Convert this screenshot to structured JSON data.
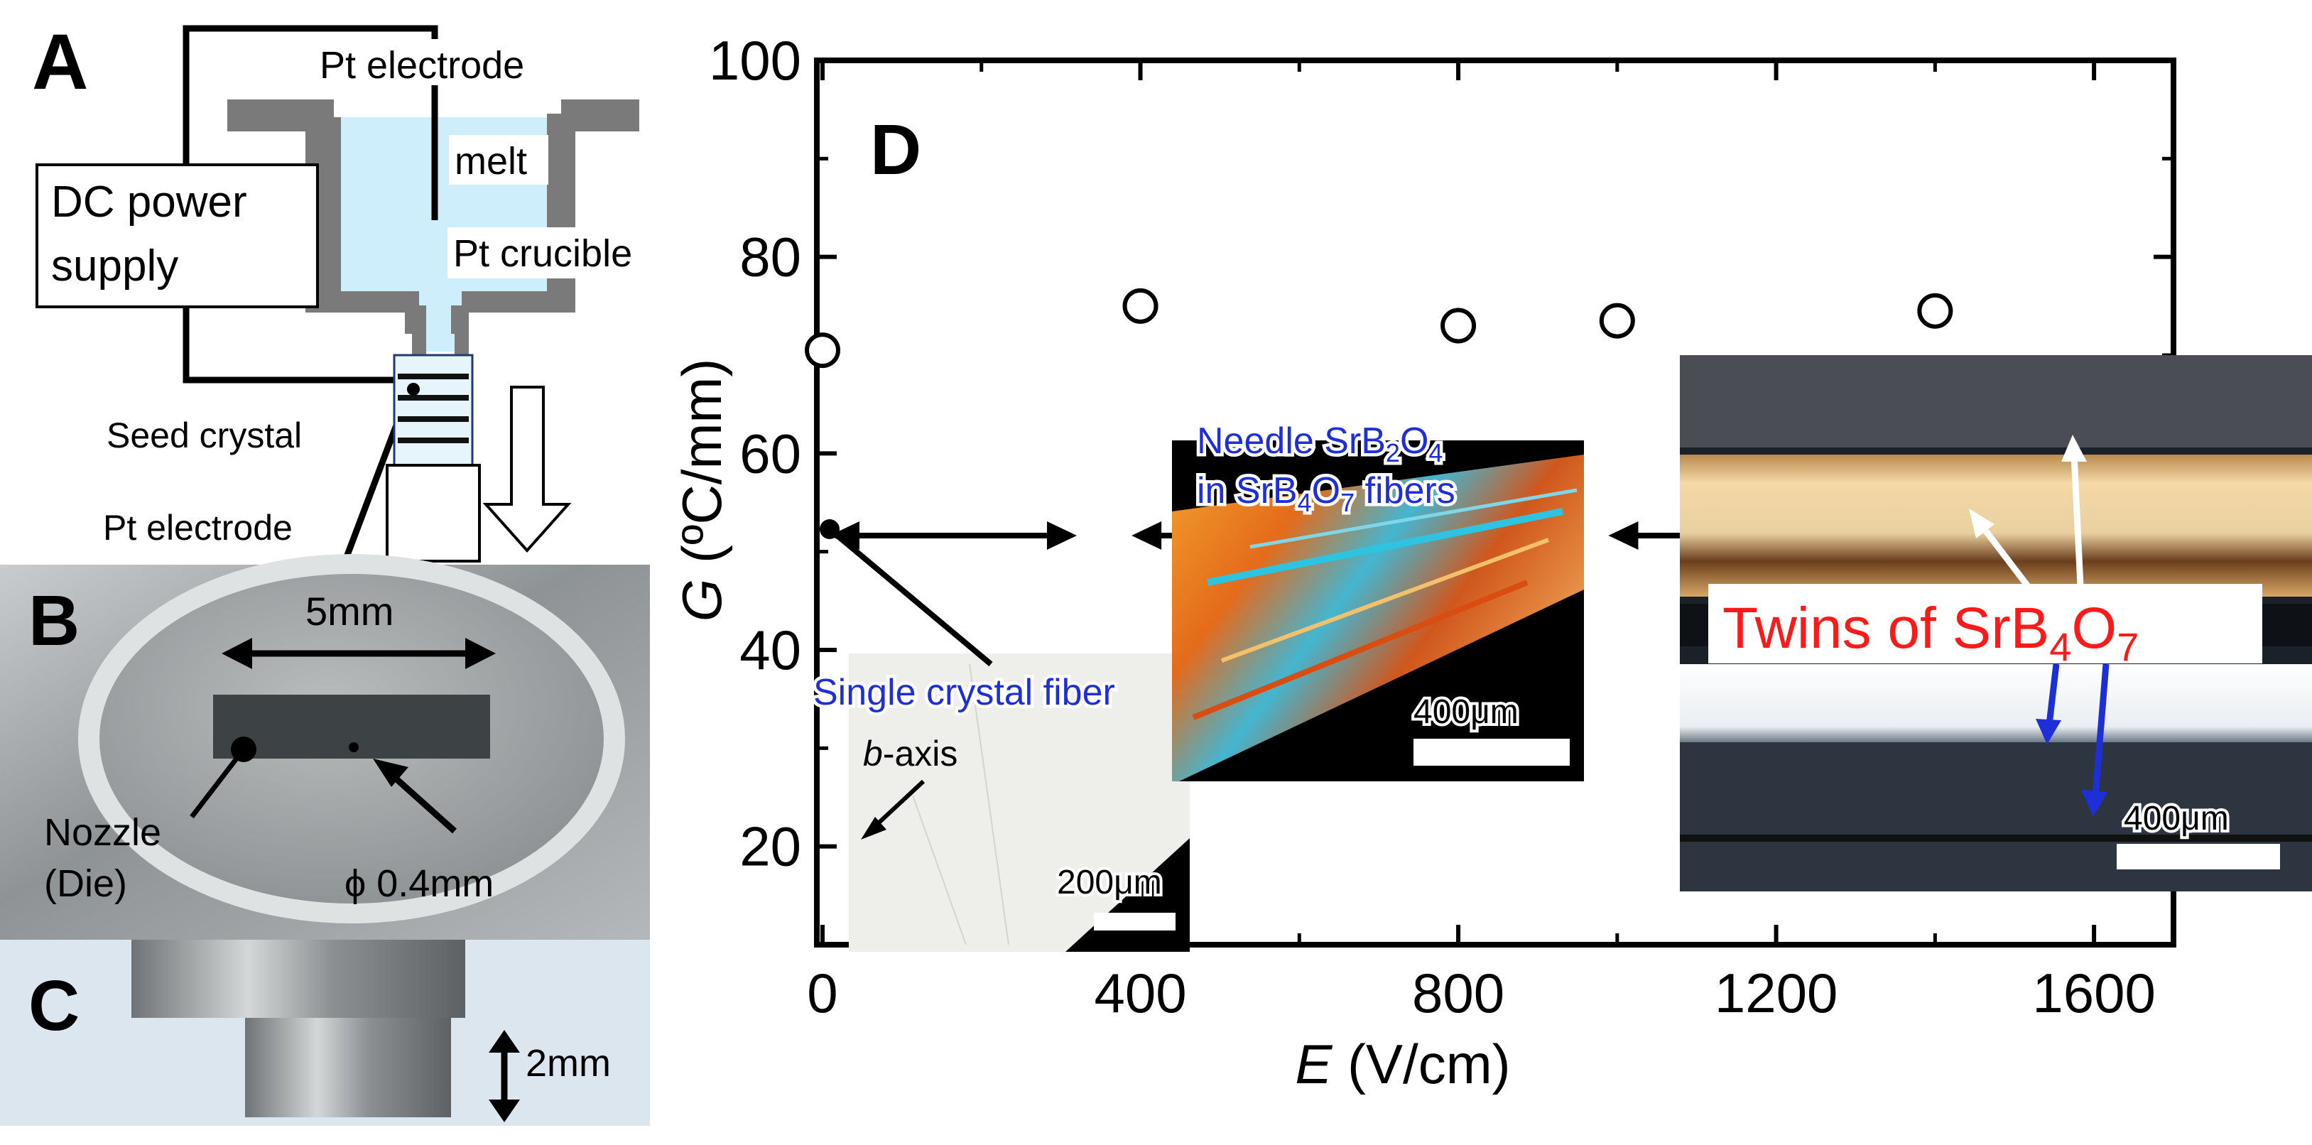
{
  "panel_a": {
    "letter": "A",
    "top_electrode": "Pt electrode",
    "melt": "melt",
    "crucible": "Pt crucible",
    "dc_supply_line1": "DC power",
    "dc_supply_line2": "supply",
    "seed": "Seed crystal",
    "bottom_electrode": "Pt electrode"
  },
  "panel_b": {
    "letter": "B",
    "width_label": "5mm",
    "nozzle_line1": "Nozzle",
    "nozzle_line2": "(Die)",
    "hole_label": "ϕ 0.4mm"
  },
  "panel_c": {
    "letter": "C",
    "height_label": "2mm"
  },
  "panel_d": {
    "letter": "D",
    "insets": {
      "single": {
        "title": "Single crystal fiber",
        "axis_pre": "b",
        "axis_post": "-axis",
        "scale": "200μm"
      },
      "needle": {
        "line1_a": "Needle SrB",
        "line1_sub1": "2",
        "line1_b": "O",
        "line1_sub2": "4",
        "line2_a": "in SrB",
        "line2_sub1": "4",
        "line2_b": "O",
        "line2_sub2": "7",
        "line2_c": " fibers",
        "scale": "400μm"
      },
      "twins": {
        "text_a": "Twins of SrB",
        "sub1": "4",
        "text_b": "O",
        "sub2": "7",
        "scale": "400μm"
      }
    }
  },
  "colors": {
    "melt": "#cfeefc",
    "crucible": "#7a7a7a",
    "twins_text": "#ff1a1a",
    "needle_text": "#1f2fd8",
    "single_text": "#1f2fd8"
  },
  "chart_data": {
    "type": "scatter",
    "xlabel_var": "E",
    "xlabel_unit": " (V/cm)",
    "ylabel_var": "G",
    "ylabel_unit": " (ºC/mm)",
    "xlim": [
      0,
      1700
    ],
    "ylim": [
      10,
      100
    ],
    "xticks": [
      0,
      400,
      800,
      1200,
      1600
    ],
    "xtick_labels": [
      "0",
      "400",
      "800",
      "1200",
      "1600"
    ],
    "yticks": [
      20,
      40,
      60,
      80,
      100
    ],
    "ytick_labels": [
      "20",
      "40",
      "60",
      "80",
      "100"
    ],
    "points": [
      {
        "x": 0,
        "y": 70.5
      },
      {
        "x": 400,
        "y": 75
      },
      {
        "x": 800,
        "y": 73
      },
      {
        "x": 1000,
        "y": 73.5
      },
      {
        "x": 1400,
        "y": 74.5
      }
    ],
    "range_arrows_y": 52,
    "ranges": [
      {
        "from": 0,
        "to": 320
      },
      {
        "from": 380,
        "to": 920
      },
      {
        "from": 980,
        "to": 1700
      }
    ]
  }
}
